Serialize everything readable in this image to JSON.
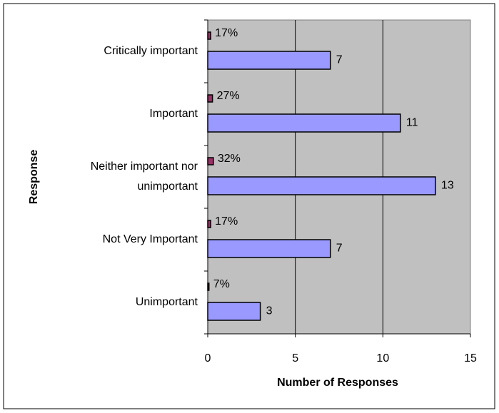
{
  "chart_data": {
    "type": "bar",
    "orientation": "horizontal",
    "x_label": "Number of Responses",
    "y_label": "Response",
    "categories": [
      "Critically important",
      "Important",
      "Neither important nor unimportant",
      "Not Very Important",
      "Unimportant"
    ],
    "series": [
      {
        "color": "#993366",
        "values": [
          0.17,
          0.27,
          0.32,
          0.17,
          0.07
        ],
        "value_labels": [
          "17%",
          "27%",
          "32%",
          "17%",
          "7%"
        ]
      },
      {
        "color": "#9999ff",
        "values": [
          7,
          11,
          13,
          7,
          3
        ]
      }
    ],
    "xlim": [
      0,
      15
    ],
    "xticks": [
      0,
      5,
      10,
      15
    ],
    "grid": true
  }
}
